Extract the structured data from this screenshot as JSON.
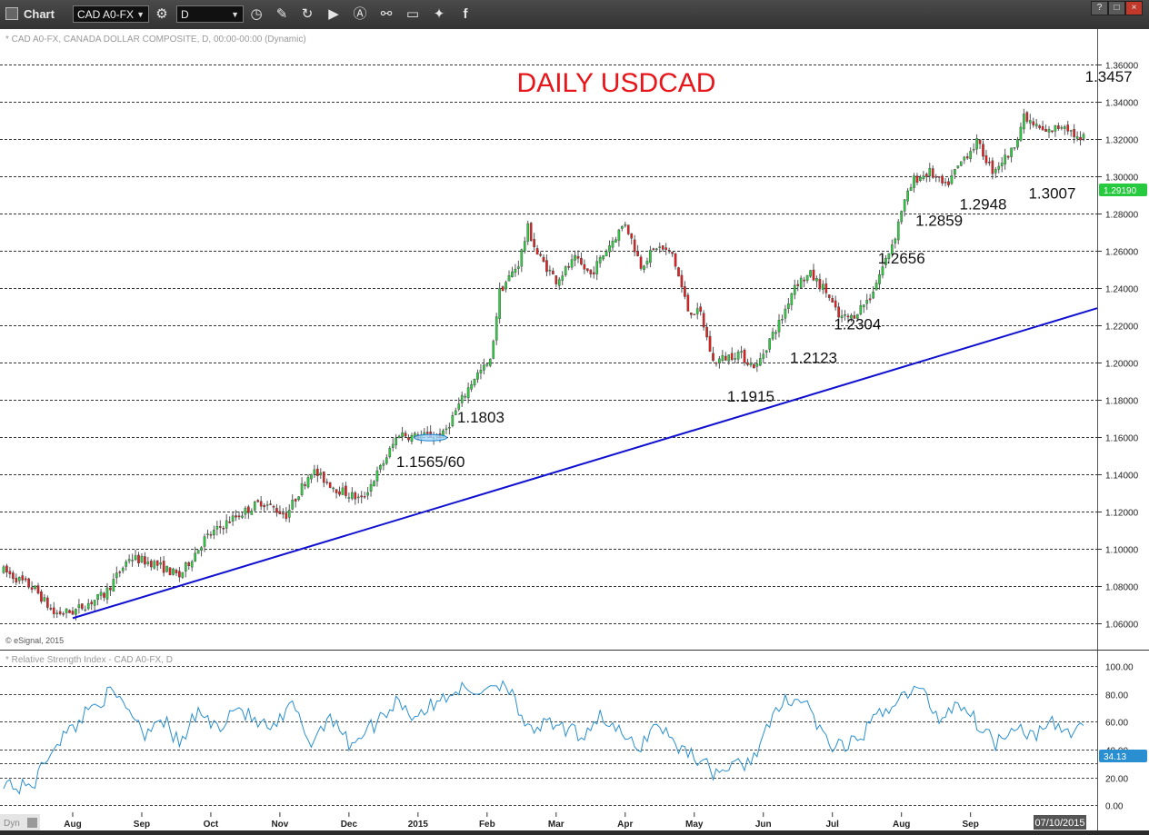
{
  "app": {
    "title": "Chart"
  },
  "toolbar": {
    "symbol": "CAD A0-FX",
    "interval": "D",
    "icons": [
      "settings-icon",
      "clock-icon",
      "pencil-icon",
      "refresh-icon",
      "play-icon",
      "draw-icon",
      "link-icon",
      "comment-icon",
      "twitter-icon",
      "facebook-icon"
    ],
    "window_buttons": [
      "?",
      "□",
      "×"
    ]
  },
  "price_panel": {
    "header": "* CAD A0-FX, CANADA DOLLAR COMPOSITE, D, 00:00-00:00 (Dynamic)",
    "copyright": "© eSignal, 2015",
    "last_price": "1.29190",
    "colors": {
      "up": "#2ecc40",
      "down": "#e0201f",
      "trendline": "#1010d0",
      "title": "#e8161b",
      "last_price": "#27c93f"
    }
  },
  "rsi_panel": {
    "header": "* Relative Strength Index - CAD A0-FX, D",
    "last_value": "34.13",
    "color": "#2a8fd0"
  },
  "status": {
    "left": "Dyn",
    "date": "07/10/2015"
  },
  "chart_data": [
    {
      "type": "candlestick",
      "title": "DAILY USDCAD",
      "ylim": [
        1.05,
        1.375
      ],
      "y_ticks": [
        "1.06000",
        "1.08000",
        "1.10000",
        "1.12000",
        "1.14000",
        "1.16000",
        "1.18000",
        "1.20000",
        "1.22000",
        "1.24000",
        "1.26000",
        "1.28000",
        "1.30000",
        "1.32000",
        "1.34000",
        "1.36000"
      ],
      "x_labels": [
        "Aug",
        "Sep",
        "Oct",
        "Nov",
        "Dec",
        "2015",
        "Feb",
        "Mar",
        "Apr",
        "May",
        "Jun",
        "Jul",
        "Aug",
        "Sep"
      ],
      "x_label_index": [
        22,
        44,
        66,
        88,
        110,
        132,
        154,
        176,
        198,
        220,
        242,
        264,
        286,
        308
      ],
      "bars": 345,
      "path": [
        [
          0,
          1.088
        ],
        [
          10,
          1.078
        ],
        [
          16,
          1.065
        ],
        [
          22,
          1.066
        ],
        [
          32,
          1.075
        ],
        [
          40,
          1.095
        ],
        [
          48,
          1.092
        ],
        [
          56,
          1.085
        ],
        [
          64,
          1.105
        ],
        [
          72,
          1.115
        ],
        [
          82,
          1.125
        ],
        [
          90,
          1.118
        ],
        [
          98,
          1.142
        ],
        [
          106,
          1.132
        ],
        [
          114,
          1.126
        ],
        [
          120,
          1.143
        ],
        [
          126,
          1.162
        ],
        [
          130,
          1.16
        ],
        [
          140,
          1.161
        ],
        [
          146,
          1.18
        ],
        [
          150,
          1.192
        ],
        [
          155,
          1.2
        ],
        [
          158,
          1.238
        ],
        [
          164,
          1.253
        ],
        [
          167,
          1.272
        ],
        [
          170,
          1.258
        ],
        [
          176,
          1.244
        ],
        [
          182,
          1.255
        ],
        [
          187,
          1.247
        ],
        [
          193,
          1.263
        ],
        [
          198,
          1.275
        ],
        [
          203,
          1.252
        ],
        [
          208,
          1.262
        ],
        [
          213,
          1.258
        ],
        [
          218,
          1.228
        ],
        [
          222,
          1.226
        ],
        [
          226,
          1.2
        ],
        [
          234,
          1.205
        ],
        [
          238,
          1.199
        ],
        [
          240,
          1.198
        ],
        [
          244,
          1.212
        ],
        [
          248,
          1.224
        ],
        [
          252,
          1.242
        ],
        [
          257,
          1.247
        ],
        [
          262,
          1.238
        ],
        [
          266,
          1.224
        ],
        [
          270,
          1.224
        ],
        [
          276,
          1.235
        ],
        [
          281,
          1.255
        ],
        [
          284,
          1.268
        ],
        [
          286,
          1.282
        ],
        [
          290,
          1.298
        ],
        [
          295,
          1.302
        ],
        [
          300,
          1.294
        ],
        [
          306,
          1.31
        ],
        [
          310,
          1.318
        ],
        [
          315,
          1.303
        ],
        [
          321,
          1.313
        ],
        [
          325,
          1.331
        ],
        [
          332,
          1.323
        ],
        [
          338,
          1.328
        ],
        [
          343,
          1.318
        ],
        [
          348,
          1.33
        ],
        [
          353,
          1.34
        ],
        [
          356,
          1.337
        ],
        [
          360,
          1.318
        ],
        [
          364,
          1.302
        ],
        [
          368,
          1.301
        ],
        [
          372,
          1.288
        ],
        [
          375,
          1.292
        ]
      ],
      "annotations": [
        {
          "text": "1.3457",
          "i": 352,
          "price": 1.3457
        },
        {
          "text": "1.3007",
          "i": 334,
          "price": 1.3007
        },
        {
          "text": "1.2948",
          "i": 312,
          "price": 1.2948
        },
        {
          "text": "1.2859",
          "i": 298,
          "price": 1.2859
        },
        {
          "text": "1.2656",
          "i": 286,
          "price": 1.2656
        },
        {
          "text": "1.2304",
          "i": 272,
          "price": 1.2304
        },
        {
          "text": "1.2123",
          "i": 258,
          "price": 1.2123
        },
        {
          "text": "1.1915",
          "i": 238,
          "price": 1.1915
        },
        {
          "text": "1.1803",
          "i": 152,
          "price": 1.1803
        },
        {
          "text": "1.1565/60",
          "i": 136,
          "price": 1.1565
        }
      ],
      "trendline": [
        [
          22,
          1.0625
        ],
        [
          375,
          1.229
        ]
      ]
    },
    {
      "type": "line",
      "title": "",
      "ylim": [
        -5,
        102
      ],
      "y_ticks": [
        "100.00",
        "80.00",
        "60.00",
        "40.00",
        "20.00",
        "0.00"
      ],
      "guides": [
        100,
        80,
        60,
        40,
        30,
        20,
        0
      ],
      "path": [
        [
          0,
          18
        ],
        [
          5,
          12
        ],
        [
          10,
          17
        ],
        [
          16,
          44
        ],
        [
          22,
          55
        ],
        [
          28,
          72
        ],
        [
          34,
          80
        ],
        [
          40,
          70
        ],
        [
          45,
          52
        ],
        [
          50,
          65
        ],
        [
          56,
          43
        ],
        [
          62,
          68
        ],
        [
          68,
          55
        ],
        [
          74,
          72
        ],
        [
          80,
          60
        ],
        [
          86,
          54
        ],
        [
          92,
          72
        ],
        [
          98,
          44
        ],
        [
          104,
          66
        ],
        [
          110,
          44
        ],
        [
          118,
          58
        ],
        [
          126,
          77
        ],
        [
          130,
          64
        ],
        [
          138,
          73
        ],
        [
          144,
          84
        ],
        [
          150,
          80
        ],
        [
          156,
          88
        ],
        [
          162,
          85
        ],
        [
          166,
          52
        ],
        [
          172,
          58
        ],
        [
          178,
          55
        ],
        [
          184,
          50
        ],
        [
          190,
          65
        ],
        [
          196,
          52
        ],
        [
          202,
          40
        ],
        [
          208,
          60
        ],
        [
          214,
          44
        ],
        [
          220,
          36
        ],
        [
          226,
          24
        ],
        [
          232,
          27
        ],
        [
          238,
          32
        ],
        [
          244,
          58
        ],
        [
          250,
          78
        ],
        [
          256,
          73
        ],
        [
          262,
          45
        ],
        [
          268,
          40
        ],
        [
          274,
          52
        ],
        [
          280,
          68
        ],
        [
          286,
          78
        ],
        [
          292,
          84
        ],
        [
          298,
          62
        ],
        [
          304,
          75
        ],
        [
          310,
          60
        ],
        [
          316,
          45
        ],
        [
          322,
          59
        ],
        [
          328,
          50
        ],
        [
          334,
          58
        ],
        [
          340,
          52
        ],
        [
          346,
          64
        ],
        [
          350,
          73
        ],
        [
          352,
          74
        ],
        [
          356,
          50
        ],
        [
          360,
          30
        ],
        [
          364,
          24
        ],
        [
          368,
          36
        ],
        [
          372,
          25
        ],
        [
          375,
          34
        ]
      ]
    }
  ]
}
